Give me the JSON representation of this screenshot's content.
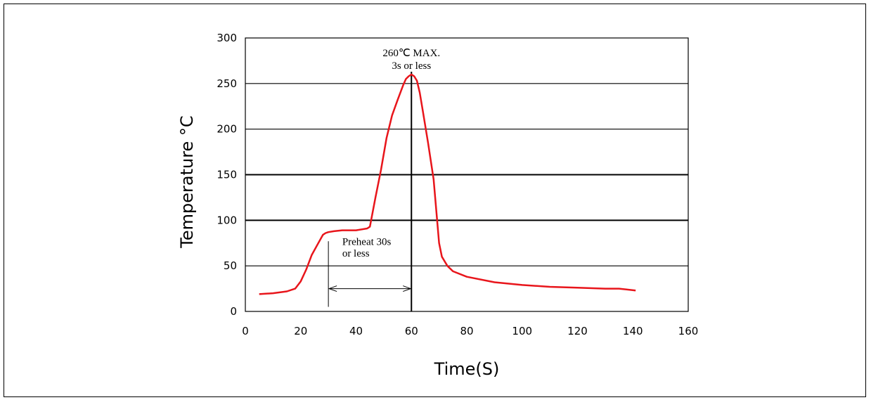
{
  "chart_data": {
    "type": "line",
    "title": "",
    "xlabel": "Time(S)",
    "ylabel": "Temperature °C",
    "xlim": [
      0,
      160
    ],
    "ylim": [
      0,
      300
    ],
    "x_ticks": [
      0,
      20,
      40,
      60,
      80,
      100,
      120,
      140,
      160
    ],
    "y_ticks": [
      0,
      50,
      100,
      150,
      200,
      250,
      300
    ],
    "grid": "horizontal",
    "series": [
      {
        "color": "#e8151b",
        "x": [
          5,
          10,
          15,
          18,
          20,
          22,
          24,
          26,
          28,
          29,
          30,
          32,
          35,
          40,
          44,
          45,
          47,
          49,
          51,
          53,
          55,
          57,
          58,
          59,
          60,
          61,
          62,
          63,
          64,
          66,
          68,
          69,
          70,
          71,
          73,
          75,
          80,
          90,
          100,
          110,
          120,
          130,
          135,
          141
        ],
        "y": [
          19,
          20,
          22,
          25,
          33,
          46,
          62,
          73,
          84,
          86,
          87,
          88,
          89,
          89,
          91,
          93,
          125,
          155,
          190,
          215,
          232,
          248,
          255,
          258,
          260,
          258,
          253,
          240,
          222,
          185,
          145,
          110,
          75,
          60,
          50,
          44,
          38,
          32,
          29,
          27,
          26,
          25,
          25,
          23
        ]
      }
    ],
    "annotations": {
      "peak_line1": "260℃ MAX.",
      "peak_line2": "3s or less",
      "preheat_line1": "Preheat 30s",
      "preheat_line2": "or less"
    },
    "marker_lines": {
      "peak_x": 60,
      "preheat_start_x": 30,
      "preheat_end_x": 60,
      "preheat_arrow_y": 25
    }
  }
}
